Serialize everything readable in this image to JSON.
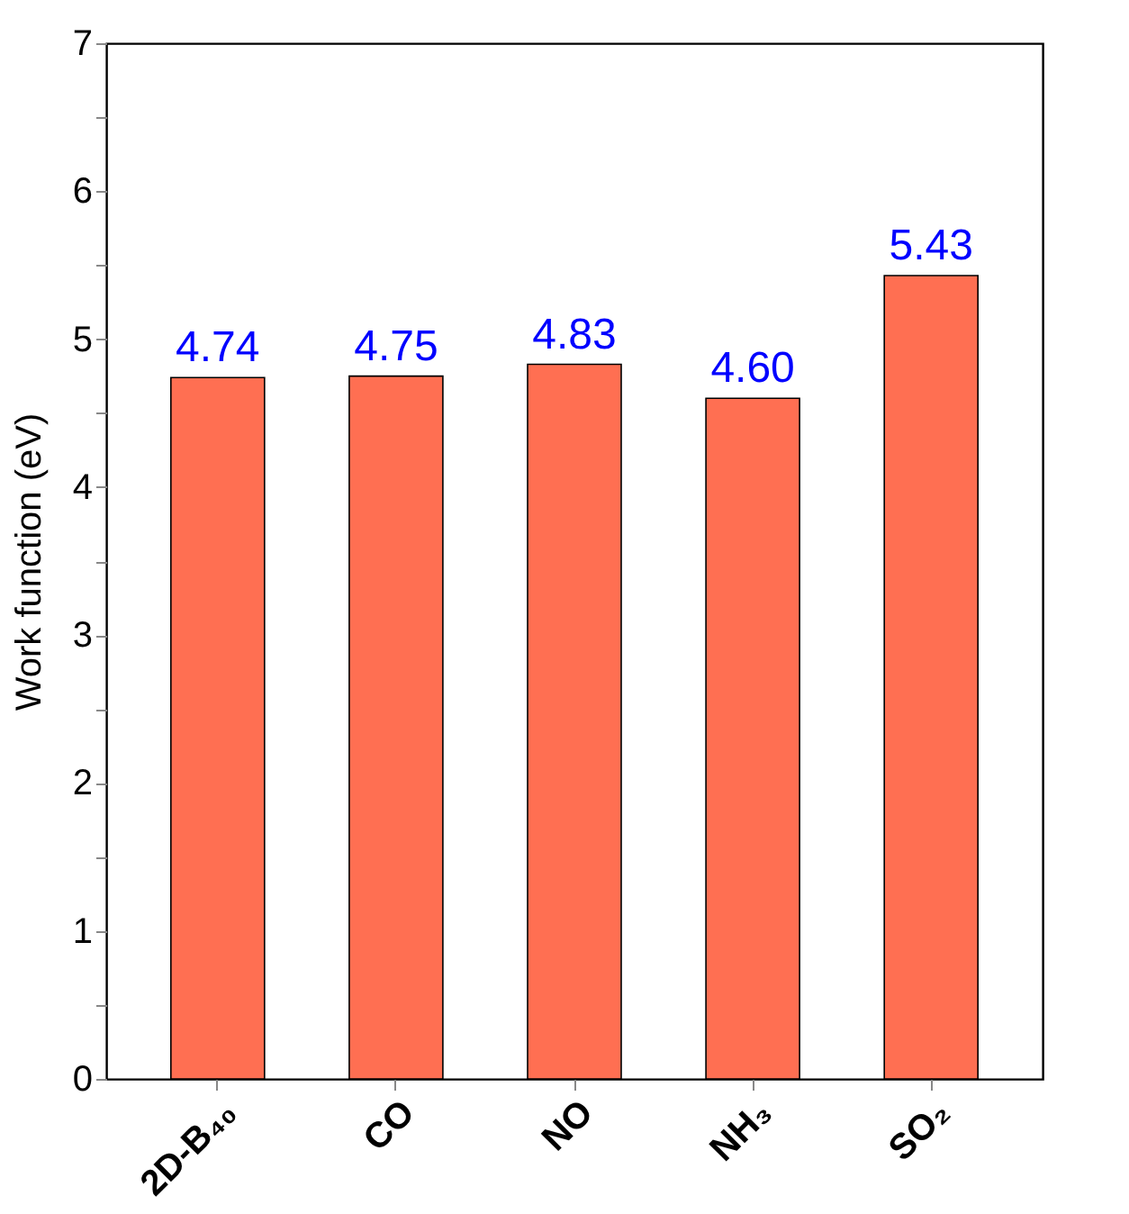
{
  "chart_data": {
    "type": "bar",
    "ylabel": "Work function (eV)",
    "categories": [
      "2D-B₄₀",
      "CO",
      "NO",
      "NH₃",
      "SO₂"
    ],
    "series": [
      {
        "color": "#ff6f52",
        "values": [
          4.74,
          4.75,
          4.83,
          4.6,
          5.43
        ],
        "value_labels": [
          "4.74",
          "4.75",
          "4.83",
          "4.60",
          "5.43"
        ]
      }
    ],
    "ylim": [
      0,
      7
    ],
    "yticks": [
      0,
      {
        "value": 0.5,
        "label": null
      },
      1,
      {
        "value": 1.5,
        "label": null
      },
      2,
      {
        "value": 2.5,
        "label": null
      },
      3,
      {
        "value": 3.5,
        "label": null
      },
      4,
      {
        "value": 4.5,
        "label": null
      },
      5,
      {
        "value": 5.5,
        "label": null
      },
      6,
      {
        "value": 6.5,
        "label": null
      },
      7
    ],
    "grid": false
  }
}
